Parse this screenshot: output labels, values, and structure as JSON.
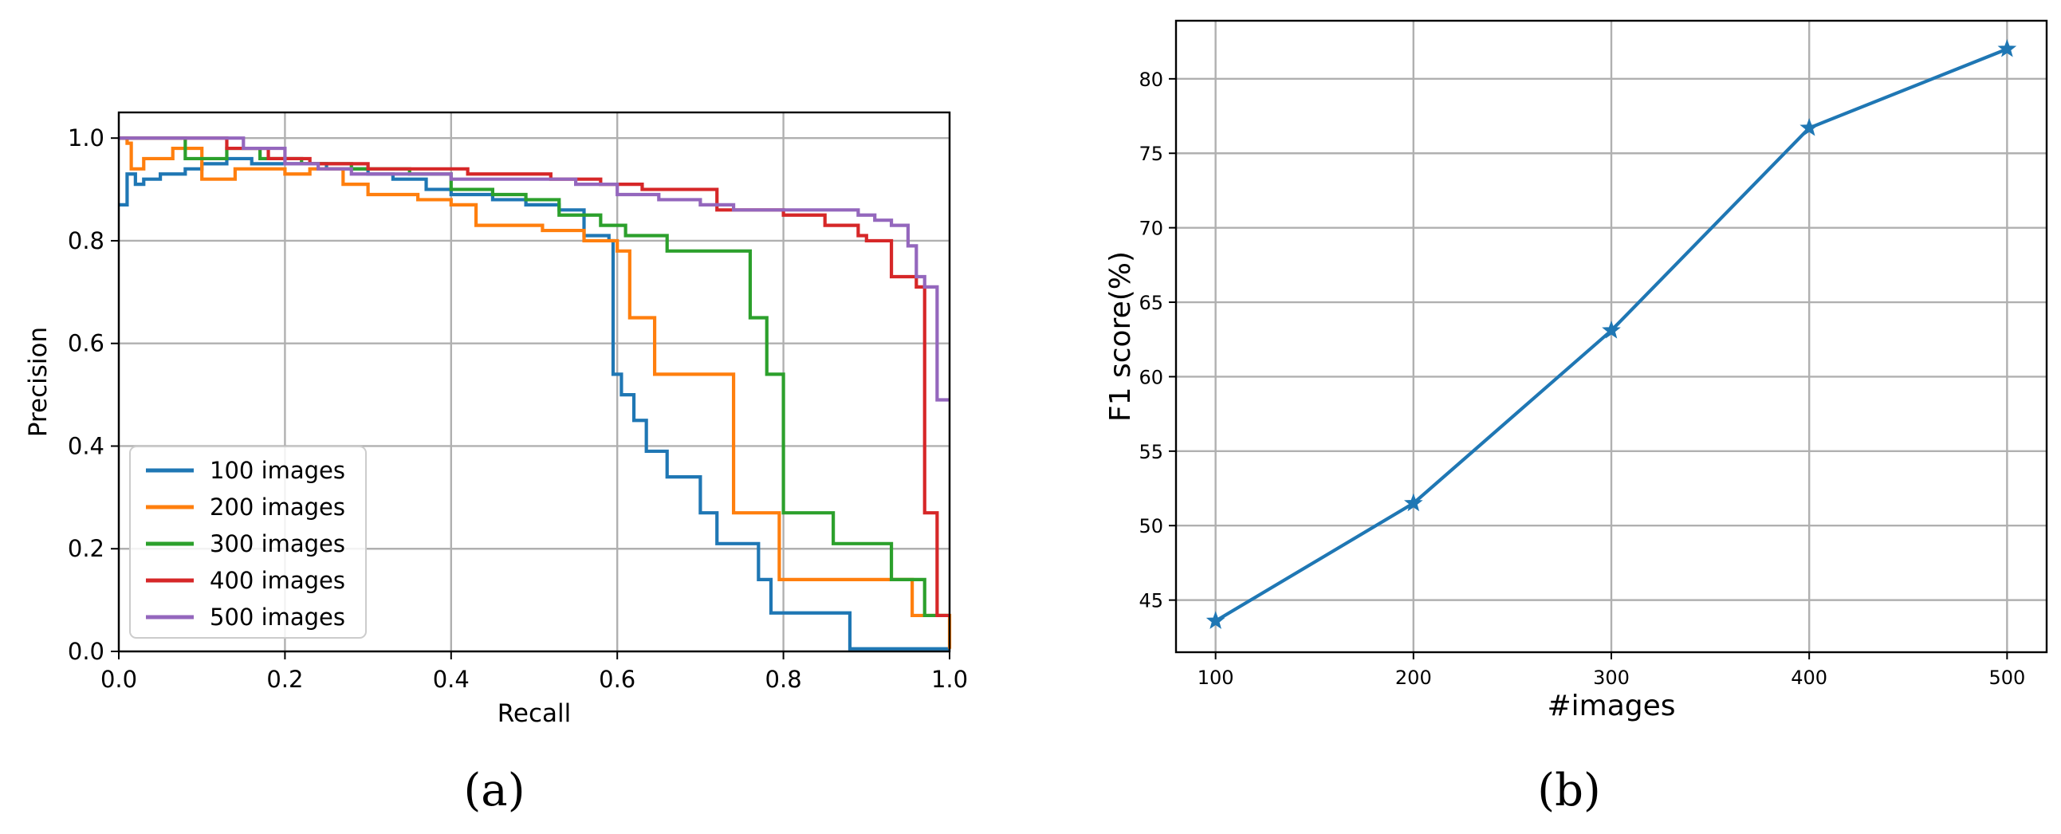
{
  "chart_data": [
    {
      "type": "line",
      "subtype": "step",
      "xlabel": "Recall",
      "ylabel": "Precision",
      "xlim": [
        0.0,
        1.0
      ],
      "ylim": [
        0.0,
        1.05
      ],
      "xticks": [
        0.0,
        0.2,
        0.4,
        0.6,
        0.8,
        1.0
      ],
      "yticks": [
        0.0,
        0.2,
        0.4,
        0.6,
        0.8,
        1.0
      ],
      "xtick_labels": [
        "0.0",
        "0.2",
        "0.4",
        "0.6",
        "0.8",
        "1.0"
      ],
      "ytick_labels": [
        "0.0",
        "0.2",
        "0.4",
        "0.6",
        "0.8",
        "1.0"
      ],
      "grid": true,
      "legend_position": "lower-left",
      "caption": "(a)",
      "series": [
        {
          "name": "100 images",
          "color": "#1f77b4",
          "x": [
            0.0,
            0.01,
            0.02,
            0.03,
            0.05,
            0.08,
            0.1,
            0.13,
            0.16,
            0.2,
            0.25,
            0.3,
            0.33,
            0.37,
            0.4,
            0.45,
            0.49,
            0.53,
            0.56,
            0.59,
            0.595,
            0.605,
            0.62,
            0.635,
            0.66,
            0.7,
            0.72,
            0.77,
            0.785,
            0.88,
            1.0
          ],
          "y": [
            0.87,
            0.93,
            0.91,
            0.92,
            0.93,
            0.94,
            0.95,
            0.96,
            0.95,
            0.95,
            0.94,
            0.93,
            0.92,
            0.9,
            0.89,
            0.88,
            0.87,
            0.86,
            0.81,
            0.8,
            0.54,
            0.5,
            0.45,
            0.39,
            0.34,
            0.27,
            0.21,
            0.14,
            0.075,
            0.005,
            0.005
          ]
        },
        {
          "name": "200 images",
          "color": "#ff7f0e",
          "x": [
            0.0,
            0.01,
            0.015,
            0.03,
            0.065,
            0.1,
            0.14,
            0.2,
            0.23,
            0.27,
            0.3,
            0.36,
            0.4,
            0.43,
            0.51,
            0.56,
            0.6,
            0.615,
            0.645,
            0.73,
            0.74,
            0.795,
            0.94,
            0.955,
            1.0
          ],
          "y": [
            1.0,
            0.99,
            0.94,
            0.96,
            0.98,
            0.92,
            0.94,
            0.93,
            0.94,
            0.91,
            0.89,
            0.88,
            0.87,
            0.83,
            0.82,
            0.8,
            0.78,
            0.65,
            0.54,
            0.54,
            0.27,
            0.14,
            0.14,
            0.07,
            0.005
          ]
        },
        {
          "name": "300 images",
          "color": "#2ca02c",
          "x": [
            0.0,
            0.08,
            0.13,
            0.17,
            0.22,
            0.28,
            0.35,
            0.4,
            0.45,
            0.49,
            0.53,
            0.58,
            0.61,
            0.66,
            0.74,
            0.75,
            0.76,
            0.78,
            0.8,
            0.86,
            0.93,
            0.97,
            1.0
          ],
          "y": [
            1.0,
            0.96,
            0.98,
            0.96,
            0.95,
            0.94,
            0.93,
            0.9,
            0.89,
            0.88,
            0.85,
            0.83,
            0.81,
            0.78,
            0.78,
            0.78,
            0.65,
            0.54,
            0.27,
            0.21,
            0.14,
            0.07,
            0.07
          ]
        },
        {
          "name": "400 images",
          "color": "#d62728",
          "x": [
            0.0,
            0.13,
            0.18,
            0.23,
            0.3,
            0.42,
            0.52,
            0.58,
            0.63,
            0.72,
            0.8,
            0.85,
            0.89,
            0.9,
            0.93,
            0.96,
            0.97,
            0.985,
            1.0
          ],
          "y": [
            1.0,
            0.98,
            0.96,
            0.95,
            0.94,
            0.93,
            0.92,
            0.91,
            0.9,
            0.86,
            0.85,
            0.83,
            0.81,
            0.8,
            0.73,
            0.71,
            0.27,
            0.07,
            0.07
          ]
        },
        {
          "name": "500 images",
          "color": "#9467bd",
          "x": [
            0.0,
            0.15,
            0.2,
            0.24,
            0.28,
            0.4,
            0.55,
            0.6,
            0.65,
            0.7,
            0.74,
            0.86,
            0.89,
            0.91,
            0.93,
            0.95,
            0.96,
            0.97,
            0.985,
            1.0
          ],
          "y": [
            1.0,
            0.98,
            0.95,
            0.94,
            0.93,
            0.92,
            0.91,
            0.89,
            0.88,
            0.87,
            0.86,
            0.86,
            0.85,
            0.84,
            0.83,
            0.79,
            0.73,
            0.71,
            0.49,
            0.49
          ]
        }
      ]
    },
    {
      "type": "line",
      "xlabel": "#images",
      "ylabel": "F1 score(%)",
      "x": [
        100,
        200,
        300,
        400,
        500
      ],
      "xlim": [
        80,
        520
      ],
      "ylim": [
        41.5,
        83.9
      ],
      "xticks": [
        100,
        200,
        300,
        400,
        500
      ],
      "yticks": [
        45,
        50,
        55,
        60,
        65,
        70,
        75,
        80
      ],
      "xtick_labels": [
        "100",
        "200",
        "300",
        "400",
        "500"
      ],
      "ytick_labels": [
        "45",
        "50",
        "55",
        "60",
        "65",
        "70",
        "75",
        "80"
      ],
      "grid": true,
      "marker": "star",
      "caption": "(b)",
      "series": [
        {
          "color": "#1f77b4",
          "values": [
            43.6,
            51.5,
            63.1,
            76.7,
            82.0
          ]
        }
      ]
    }
  ]
}
